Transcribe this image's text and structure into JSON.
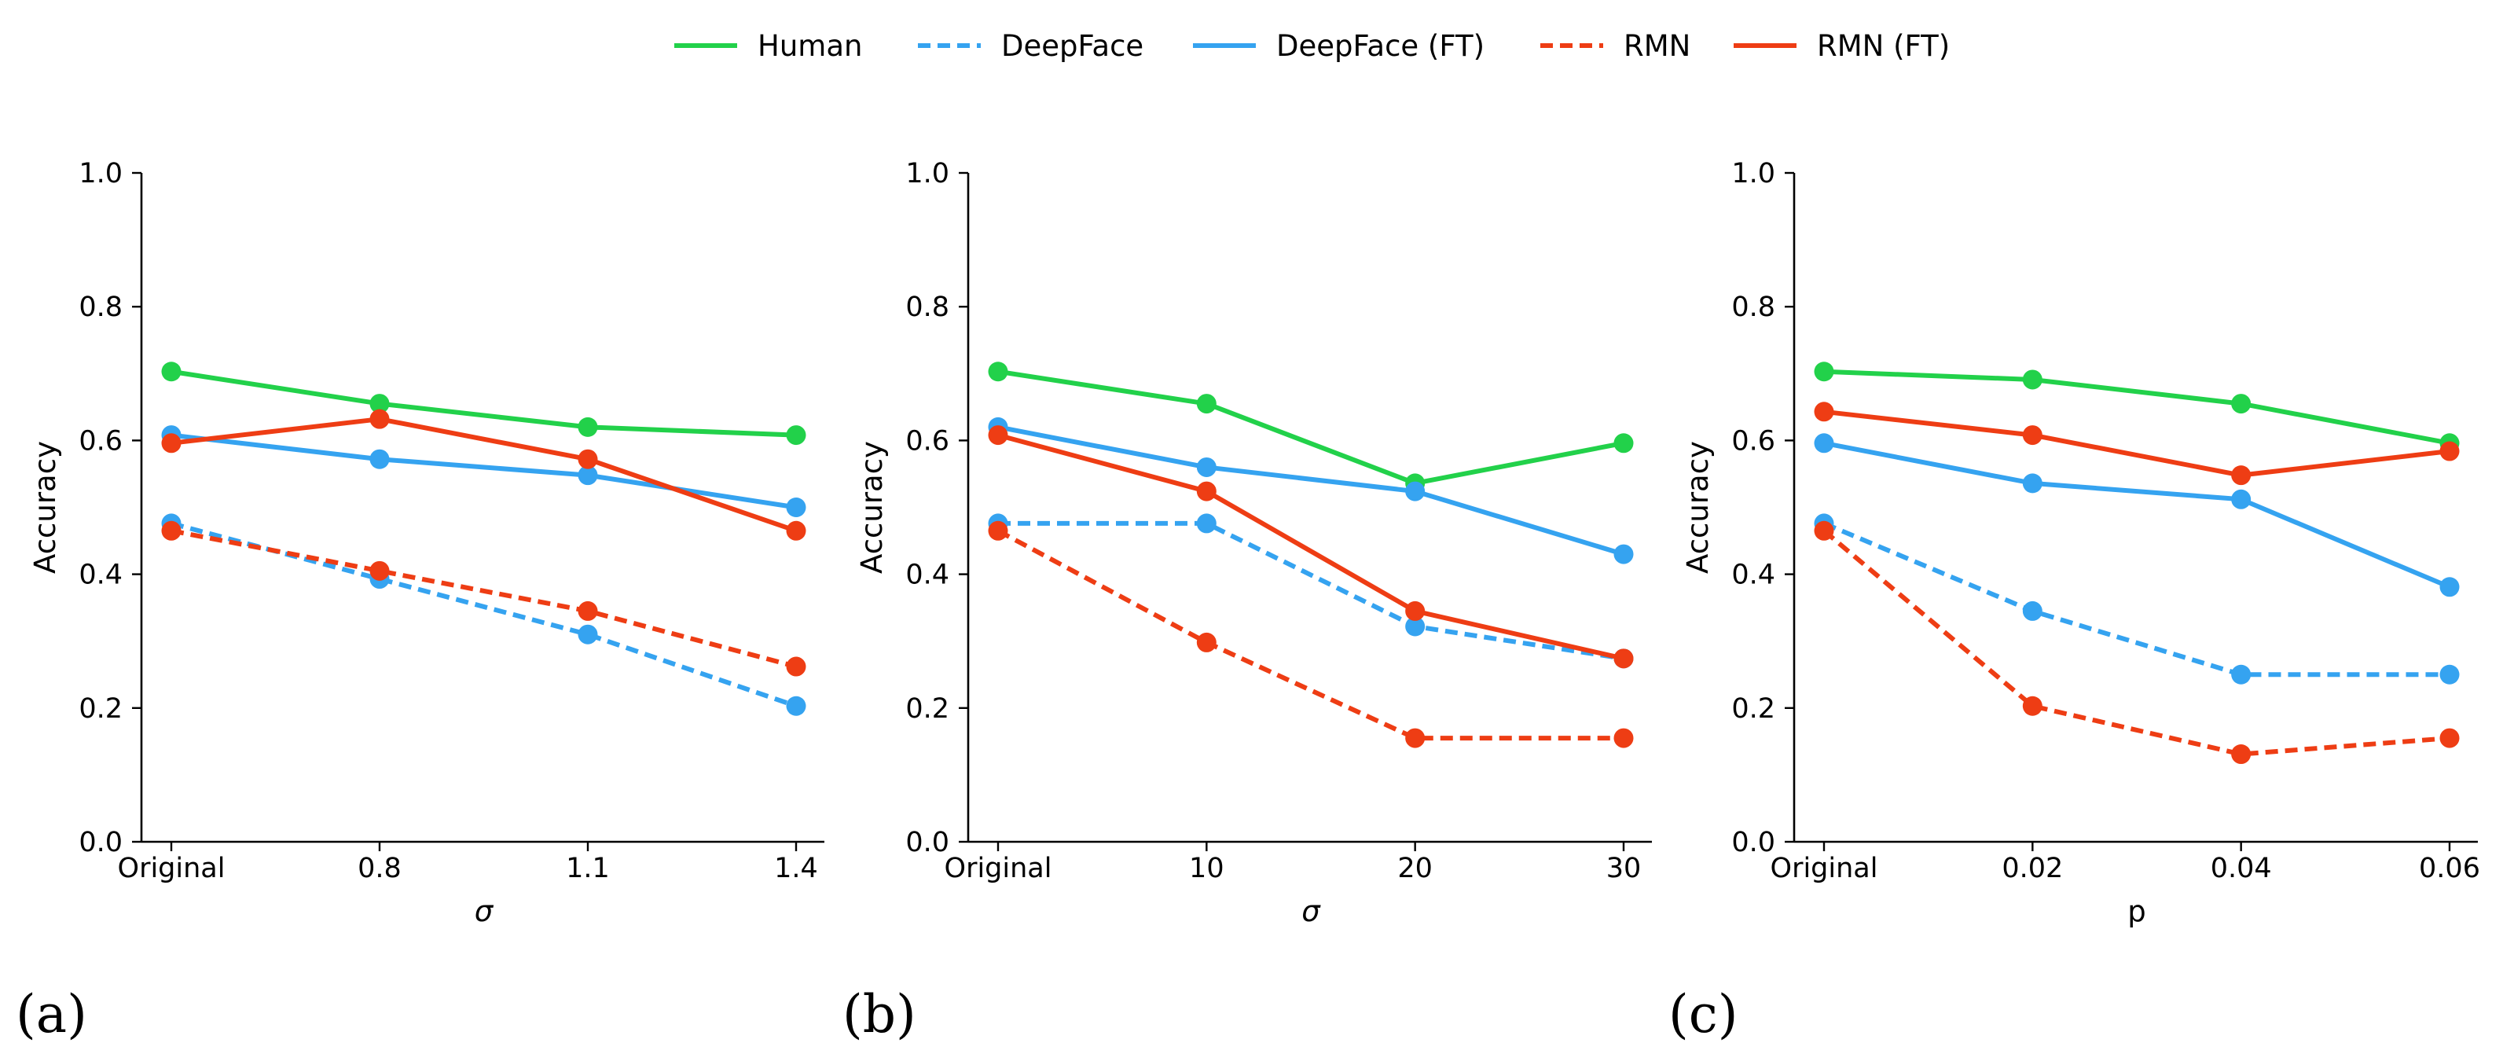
{
  "legend": [
    {
      "key": "human",
      "label": "Human",
      "color": "#22d14a",
      "dashed": false
    },
    {
      "key": "deepface",
      "label": "DeepFace",
      "color": "#35a3f0",
      "dashed": true
    },
    {
      "key": "deepface_ft",
      "label": "DeepFace (FT)",
      "color": "#35a3f0",
      "dashed": false
    },
    {
      "key": "rmn",
      "label": "RMN",
      "color": "#ee3d14",
      "dashed": true
    },
    {
      "key": "rmn_ft",
      "label": "RMN (FT)",
      "color": "#ee3d14",
      "dashed": false
    }
  ],
  "chart_data": [
    {
      "type": "line",
      "panel_label": "(a)",
      "categories": [
        "Original",
        "0.8",
        "1.1",
        "1.4"
      ],
      "xlabel": "σ",
      "ylabel": "Accuracy",
      "ylim": [
        0,
        1.0
      ],
      "yticks": [
        "0.0",
        "0.2",
        "0.4",
        "0.6",
        "0.8",
        "1.0"
      ],
      "series": [
        {
          "key": "human",
          "name": "Human",
          "values": [
            0.703,
            0.655,
            0.62,
            0.608
          ]
        },
        {
          "key": "deepface",
          "name": "DeepFace",
          "values": [
            0.476,
            0.393,
            0.31,
            0.203
          ]
        },
        {
          "key": "deepface_ft",
          "name": "DeepFace (FT)",
          "values": [
            0.608,
            0.572,
            0.548,
            0.5
          ]
        },
        {
          "key": "rmn",
          "name": "RMN",
          "values": [
            0.465,
            0.405,
            0.345,
            0.262
          ]
        },
        {
          "key": "rmn_ft",
          "name": "RMN (FT)",
          "values": [
            0.596,
            0.632,
            0.572,
            0.465
          ]
        }
      ]
    },
    {
      "type": "line",
      "panel_label": "(b)",
      "categories": [
        "Original",
        "10",
        "20",
        "30"
      ],
      "xlabel": "σ",
      "ylabel": "Accuracy",
      "ylim": [
        0,
        1.0
      ],
      "yticks": [
        "0.0",
        "0.2",
        "0.4",
        "0.6",
        "0.8",
        "1.0"
      ],
      "series": [
        {
          "key": "human",
          "name": "Human",
          "values": [
            0.703,
            0.655,
            0.536,
            0.596
          ]
        },
        {
          "key": "deepface",
          "name": "DeepFace",
          "values": [
            0.476,
            0.476,
            0.322,
            0.274
          ]
        },
        {
          "key": "deepface_ft",
          "name": "DeepFace (FT)",
          "values": [
            0.62,
            0.56,
            0.524,
            0.43
          ]
        },
        {
          "key": "rmn",
          "name": "RMN",
          "values": [
            0.465,
            0.298,
            0.155,
            0.155
          ]
        },
        {
          "key": "rmn_ft",
          "name": "RMN (FT)",
          "values": [
            0.608,
            0.524,
            0.345,
            0.274
          ]
        }
      ]
    },
    {
      "type": "line",
      "panel_label": "(c)",
      "categories": [
        "Original",
        "0.02",
        "0.04",
        "0.06"
      ],
      "xlabel": "p",
      "ylabel": "Accuracy",
      "ylim": [
        0,
        1.0
      ],
      "yticks": [
        "0.0",
        "0.2",
        "0.4",
        "0.6",
        "0.8",
        "1.0"
      ],
      "series": [
        {
          "key": "human",
          "name": "Human",
          "values": [
            0.703,
            0.691,
            0.655,
            0.596
          ]
        },
        {
          "key": "deepface",
          "name": "DeepFace",
          "values": [
            0.476,
            0.345,
            0.25,
            0.25
          ]
        },
        {
          "key": "deepface_ft",
          "name": "DeepFace (FT)",
          "values": [
            0.596,
            0.536,
            0.512,
            0.381
          ]
        },
        {
          "key": "rmn",
          "name": "RMN",
          "values": [
            0.465,
            0.203,
            0.131,
            0.155
          ]
        },
        {
          "key": "rmn_ft",
          "name": "RMN (FT)",
          "values": [
            0.643,
            0.608,
            0.548,
            0.584
          ]
        }
      ]
    }
  ]
}
